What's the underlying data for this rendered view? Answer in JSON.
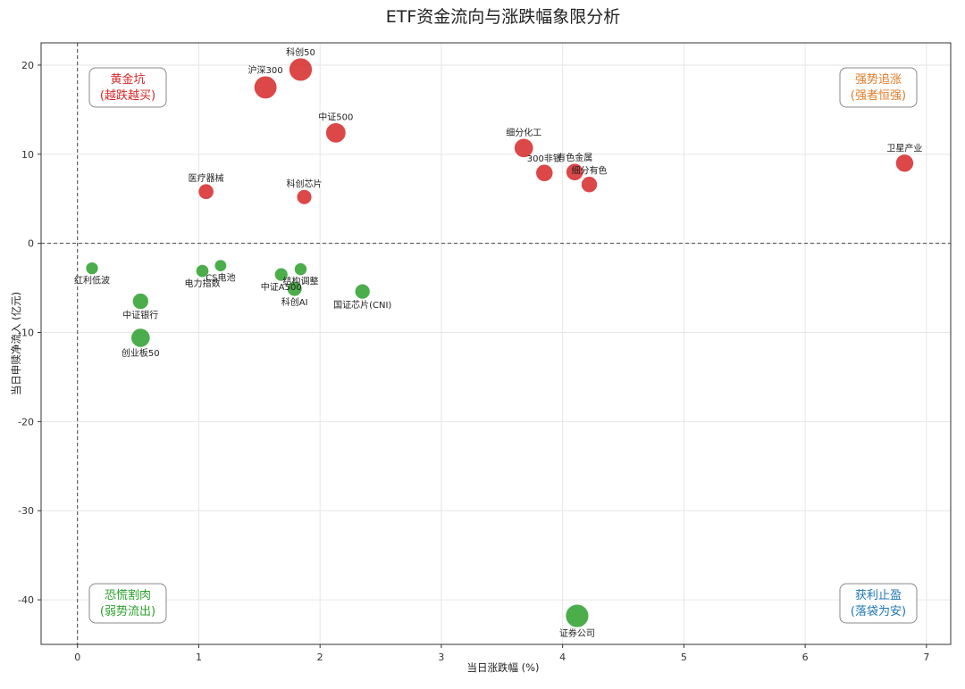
{
  "chart_data": {
    "type": "scatter",
    "title": "ETF资金流向与涨跌幅象限分析",
    "xlabel": "当日涨跌幅 (%)",
    "ylabel": "当日申赎净流入 (亿元)",
    "xlim": [
      -0.3,
      7.2
    ],
    "ylim": [
      -45,
      22.5
    ],
    "x_ticks": [
      0,
      1,
      2,
      3,
      4,
      5,
      6,
      7
    ],
    "y_ticks": [
      20,
      10,
      0,
      -10,
      -20,
      -30,
      -40
    ],
    "grid": true,
    "reference_lines": {
      "x": 0,
      "y": 0
    },
    "colors": {
      "inflow": "#d62728",
      "outflow": "#2ca02c"
    },
    "quadrants": [
      {
        "name": "黄金坑",
        "sub": "(越跌越买)",
        "position": "top-left",
        "color": "#d62728"
      },
      {
        "name": "强势追涨",
        "sub": "(强者恒强)",
        "position": "top-right",
        "color": "#e07b26"
      },
      {
        "name": "恐慌割肉",
        "sub": "(弱势流出)",
        "position": "bottom-left",
        "color": "#2ca02c"
      },
      {
        "name": "获利止盈",
        "sub": "(落袋为安)",
        "position": "bottom-right",
        "color": "#1f77b4"
      }
    ],
    "points": [
      {
        "label": "科创50",
        "x": 1.84,
        "y": 19.5,
        "label_pos": "above"
      },
      {
        "label": "沪深300",
        "x": 1.55,
        "y": 17.5,
        "label_pos": "above"
      },
      {
        "label": "中证500",
        "x": 2.13,
        "y": 12.4,
        "label_pos": "above"
      },
      {
        "label": "细分化工",
        "x": 3.68,
        "y": 10.7,
        "label_pos": "above"
      },
      {
        "label": "卫星产业",
        "x": 6.82,
        "y": 9.0,
        "label_pos": "above"
      },
      {
        "label": "300非银",
        "x": 3.85,
        "y": 7.9,
        "label_pos": "above"
      },
      {
        "label": "有色金属",
        "x": 4.1,
        "y": 8.0,
        "label_pos": "above"
      },
      {
        "label": "细分有色",
        "x": 4.22,
        "y": 6.6,
        "label_pos": "above"
      },
      {
        "label": "医疗器械",
        "x": 1.06,
        "y": 5.8,
        "label_pos": "above"
      },
      {
        "label": "科创芯片",
        "x": 1.87,
        "y": 5.2,
        "label_pos": "above"
      },
      {
        "label": "红利低波",
        "x": 0.12,
        "y": -2.8,
        "label_pos": "below"
      },
      {
        "label": "CS电池",
        "x": 1.18,
        "y": -2.5,
        "label_pos": "below"
      },
      {
        "label": "电力指数",
        "x": 1.03,
        "y": -3.1,
        "label_pos": "below"
      },
      {
        "label": "结构调整",
        "x": 1.84,
        "y": -2.9,
        "label_pos": "below"
      },
      {
        "label": "中证A500",
        "x": 1.68,
        "y": -3.5,
        "label_pos": "below"
      },
      {
        "label": "科创AI",
        "x": 1.79,
        "y": -5.1,
        "label_pos": "below"
      },
      {
        "label": "国证芯片(CNI)",
        "x": 2.35,
        "y": -5.4,
        "label_pos": "below"
      },
      {
        "label": "中证银行",
        "x": 0.52,
        "y": -6.5,
        "label_pos": "below"
      },
      {
        "label": "创业板50",
        "x": 0.52,
        "y": -10.6,
        "label_pos": "below"
      },
      {
        "label": "证券公司",
        "x": 4.12,
        "y": -41.8,
        "label_pos": "below"
      }
    ]
  }
}
